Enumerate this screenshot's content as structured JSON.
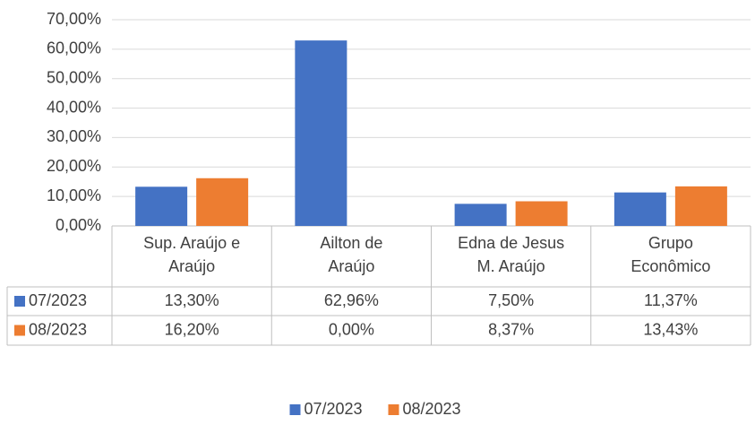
{
  "chart_data": {
    "type": "bar",
    "categories": [
      [
        "Sup. Araújo e",
        "Araújo"
      ],
      [
        "Ailton de",
        "Araújo"
      ],
      [
        "Edna de Jesus",
        "M. Araújo"
      ],
      [
        "Grupo",
        "Econômico"
      ]
    ],
    "series": [
      {
        "name": "07/2023",
        "color": "#4472c4",
        "values": [
          13.3,
          62.96,
          7.5,
          11.37
        ],
        "value_labels": [
          "13,30%",
          "62,96%",
          "7,50%",
          "11,37%"
        ]
      },
      {
        "name": "08/2023",
        "color": "#ed7d31",
        "values": [
          16.2,
          0.0,
          8.37,
          13.43
        ],
        "value_labels": [
          "16,20%",
          "0,00%",
          "8,37%",
          "13,43%"
        ]
      }
    ],
    "ylim": [
      0,
      70
    ],
    "yticks": [
      {
        "value": 0,
        "label": "0,00%"
      },
      {
        "value": 10,
        "label": "10,00%"
      },
      {
        "value": 20,
        "label": "20,00%"
      },
      {
        "value": 30,
        "label": "30,00%"
      },
      {
        "value": 40,
        "label": "40,00%"
      },
      {
        "value": 50,
        "label": "50,00%"
      },
      {
        "value": 60,
        "label": "60,00%"
      },
      {
        "value": 70,
        "label": "70,00%"
      }
    ],
    "grid": true,
    "legend": "bottom"
  }
}
